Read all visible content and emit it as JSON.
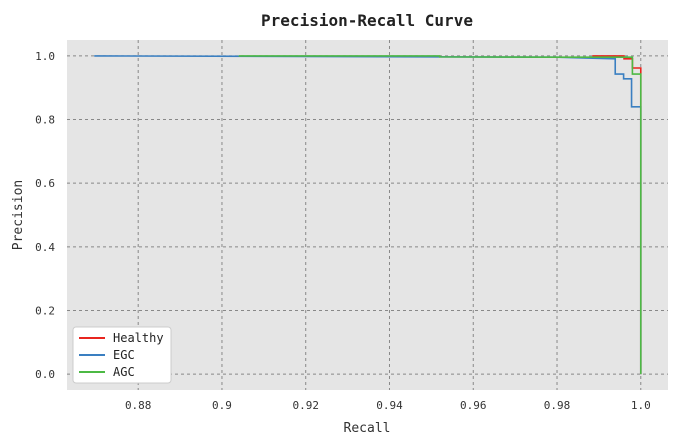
{
  "chart_data": {
    "type": "line",
    "title": "Precision-Recall Curve",
    "xlabel": "Recall",
    "ylabel": "Precision",
    "xlim": [
      0.863,
      1.0065
    ],
    "ylim": [
      -0.05,
      1.05
    ],
    "xticks": [
      0.88,
      0.9,
      0.92,
      0.94,
      0.96,
      0.98,
      1.0
    ],
    "xtick_labels": [
      "0.88",
      "0.9",
      "0.92",
      "0.94",
      "0.96",
      "0.98",
      "1.0"
    ],
    "yticks": [
      0.0,
      0.2,
      0.4,
      0.6,
      0.8,
      1.0
    ],
    "ytick_labels": [
      "0.0",
      "0.2",
      "0.4",
      "0.6",
      "0.8",
      "1.0"
    ],
    "grid": true,
    "legend_position": "lower-left",
    "series": [
      {
        "name": "Healthy",
        "color": "#e8251f",
        "points": [
          [
            0.9884,
            1.0
          ],
          [
            0.996,
            1.0
          ],
          [
            0.996,
            0.991
          ],
          [
            0.998,
            0.991
          ],
          [
            0.998,
            0.962
          ],
          [
            1.0,
            0.962
          ],
          [
            1.0,
            0.0
          ]
        ]
      },
      {
        "name": "EGC",
        "color": "#3a7fc1",
        "points": [
          [
            0.8695,
            1.0
          ],
          [
            0.98,
            0.996
          ],
          [
            0.9939,
            0.991
          ],
          [
            0.9939,
            0.943
          ],
          [
            0.9959,
            0.943
          ],
          [
            0.9959,
            0.928
          ],
          [
            0.9978,
            0.928
          ],
          [
            0.9978,
            0.84
          ],
          [
            1.0,
            0.84
          ],
          [
            1.0,
            0.0
          ]
        ]
      },
      {
        "name": "AGC",
        "color": "#4cb944",
        "points": [
          [
            0.904,
            1.0
          ],
          [
            0.952,
            1.0
          ],
          [
            0.952,
            0.997
          ],
          [
            0.98,
            0.996
          ],
          [
            0.998,
            0.996
          ],
          [
            0.998,
            0.943
          ],
          [
            1.0,
            0.943
          ],
          [
            1.0,
            0.0
          ]
        ]
      }
    ]
  }
}
